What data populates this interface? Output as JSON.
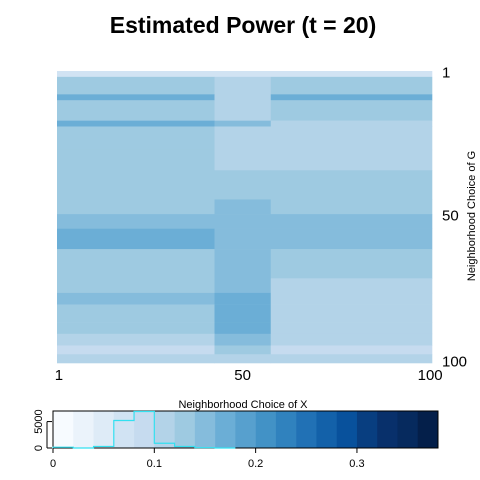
{
  "chart_data": {
    "type": "heatmap",
    "title": "Estimated Power (t = 20)",
    "xlabel": "Neighborhood Choice of X",
    "ylabel": "Neighborhood Choice of G",
    "x_range": [
      1,
      100
    ],
    "y_range": [
      1,
      100
    ],
    "x_tick_labels": [
      "1",
      "50",
      "100"
    ],
    "y_tick_labels": [
      "1",
      "50",
      "100"
    ],
    "grid": false,
    "row_blocks": [
      {
        "from": 1,
        "to": 2,
        "left": 0.07,
        "mid": 0.07,
        "right": 0.07
      },
      {
        "from": 3,
        "to": 8,
        "left": 0.13,
        "mid": 0.1,
        "right": 0.13
      },
      {
        "from": 9,
        "to": 10,
        "left": 0.16,
        "mid": 0.11,
        "right": 0.16
      },
      {
        "from": 11,
        "to": 17,
        "left": 0.13,
        "mid": 0.1,
        "right": 0.12
      },
      {
        "from": 18,
        "to": 19,
        "left": 0.16,
        "mid": 0.14,
        "right": 0.11
      },
      {
        "from": 20,
        "to": 27,
        "left": 0.13,
        "mid": 0.1,
        "right": 0.11
      },
      {
        "from": 28,
        "to": 34,
        "left": 0.13,
        "mid": 0.11,
        "right": 0.11
      },
      {
        "from": 35,
        "to": 44,
        "left": 0.13,
        "mid": 0.13,
        "right": 0.13
      },
      {
        "from": 45,
        "to": 49,
        "left": 0.13,
        "mid": 0.14,
        "right": 0.13
      },
      {
        "from": 50,
        "to": 54,
        "left": 0.15,
        "mid": 0.15,
        "right": 0.14
      },
      {
        "from": 55,
        "to": 61,
        "left": 0.16,
        "mid": 0.15,
        "right": 0.14
      },
      {
        "from": 62,
        "to": 71,
        "left": 0.13,
        "mid": 0.14,
        "right": 0.13
      },
      {
        "from": 72,
        "to": 76,
        "left": 0.12,
        "mid": 0.15,
        "right": 0.11
      },
      {
        "from": 77,
        "to": 80,
        "left": 0.14,
        "mid": 0.16,
        "right": 0.1
      },
      {
        "from": 81,
        "to": 86,
        "left": 0.13,
        "mid": 0.17,
        "right": 0.11
      },
      {
        "from": 87,
        "to": 90,
        "left": 0.12,
        "mid": 0.16,
        "right": 0.11
      },
      {
        "from": 91,
        "to": 94,
        "left": 0.1,
        "mid": 0.14,
        "right": 0.1
      },
      {
        "from": 95,
        "to": 97,
        "left": 0.08,
        "mid": 0.12,
        "right": 0.09
      },
      {
        "from": 98,
        "to": 100,
        "left": 0.11,
        "mid": 0.11,
        "right": 0.11
      }
    ],
    "column_split": {
      "mid_from": 43,
      "mid_to": 57
    },
    "color_scale": {
      "min": 0,
      "max": 0.38,
      "tick_values": [
        0,
        0.1,
        0.2,
        0.3
      ],
      "tick_labels": [
        "0",
        "0.1",
        "0.2",
        "0.3"
      ],
      "colors": [
        "#f7fbff",
        "#ebf3fb",
        "#deebf7",
        "#d1e3f3",
        "#c6dbef",
        "#b3d3e8",
        "#9ecae1",
        "#85bcdc",
        "#6baed6",
        "#57a0ce",
        "#4292c6",
        "#3082be",
        "#2171b5",
        "#1361a9",
        "#08519c",
        "#083e80",
        "#08306b",
        "#062a5e",
        "#041f4a"
      ]
    },
    "histogram": {
      "y_tick_labels": [
        "0",
        "5000"
      ],
      "y_max": 7000,
      "bin_width": 0.02,
      "bins": [
        {
          "x0": 0.0,
          "count": 150
        },
        {
          "x0": 0.02,
          "count": 0
        },
        {
          "x0": 0.04,
          "count": 300
        },
        {
          "x0": 0.06,
          "count": 5200
        },
        {
          "x0": 0.08,
          "count": 6900
        },
        {
          "x0": 0.1,
          "count": 900
        },
        {
          "x0": 0.12,
          "count": 300
        },
        {
          "x0": 0.14,
          "count": 60
        },
        {
          "x0": 0.16,
          "count": 0
        }
      ]
    }
  }
}
